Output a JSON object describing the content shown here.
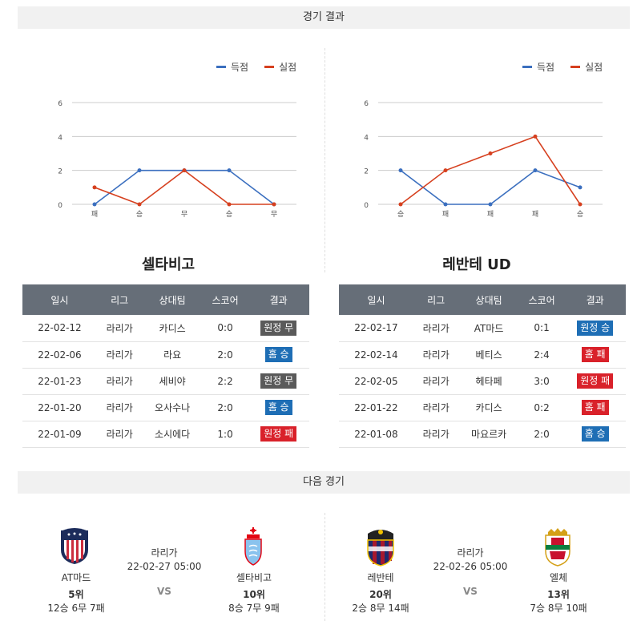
{
  "headers": {
    "results": "경기 결과",
    "next": "다음 경기"
  },
  "legend": {
    "scored": "득점",
    "conceded": "실점"
  },
  "colors": {
    "scored": "#3b6fbf",
    "conceded": "#d6401f",
    "win": "#1e6eb5",
    "loss": "#d9212a",
    "draw": "#5a5a5a"
  },
  "chart_data": [
    {
      "type": "line",
      "categories": [
        "패",
        "승",
        "무",
        "승",
        "무"
      ],
      "series": [
        {
          "name": "득점",
          "values": [
            0,
            2,
            2,
            2,
            0
          ]
        },
        {
          "name": "실점",
          "values": [
            1,
            0,
            2,
            0,
            0
          ]
        }
      ],
      "yticks": [
        "0",
        "2",
        "4",
        "6"
      ],
      "ylim": [
        0,
        6
      ],
      "grid": true,
      "legend": "top-right"
    },
    {
      "type": "line",
      "categories": [
        "승",
        "패",
        "패",
        "패",
        "승"
      ],
      "series": [
        {
          "name": "득점",
          "values": [
            2,
            0,
            0,
            2,
            1
          ]
        },
        {
          "name": "실점",
          "values": [
            0,
            2,
            3,
            4,
            0
          ]
        }
      ],
      "yticks": [
        "0",
        "2",
        "4",
        "6"
      ],
      "ylim": [
        0,
        6
      ],
      "grid": true,
      "legend": "top-right"
    }
  ],
  "teams": [
    {
      "name": "셀타비고",
      "columns": [
        "일시",
        "리그",
        "상대팀",
        "스코어",
        "결과"
      ],
      "rows": [
        {
          "date": "22-02-12",
          "league": "라리가",
          "opponent": "카디스",
          "score": "0:0",
          "result": "원정 무",
          "kind": "draw"
        },
        {
          "date": "22-02-06",
          "league": "라리가",
          "opponent": "라요",
          "score": "2:0",
          "result": "홈 승",
          "kind": "win"
        },
        {
          "date": "22-01-23",
          "league": "라리가",
          "opponent": "세비야",
          "score": "2:2",
          "result": "원정 무",
          "kind": "draw"
        },
        {
          "date": "22-01-20",
          "league": "라리가",
          "opponent": "오사수나",
          "score": "2:0",
          "result": "홈 승",
          "kind": "win"
        },
        {
          "date": "22-01-09",
          "league": "라리가",
          "opponent": "소시에다",
          "score": "1:0",
          "result": "원정 패",
          "kind": "loss"
        }
      ]
    },
    {
      "name": "레반테 UD",
      "columns": [
        "일시",
        "리그",
        "상대팀",
        "스코어",
        "결과"
      ],
      "rows": [
        {
          "date": "22-02-17",
          "league": "라리가",
          "opponent": "AT마드",
          "score": "0:1",
          "result": "원정 승",
          "kind": "win"
        },
        {
          "date": "22-02-14",
          "league": "라리가",
          "opponent": "베티스",
          "score": "2:4",
          "result": "홈 패",
          "kind": "loss"
        },
        {
          "date": "22-02-05",
          "league": "라리가",
          "opponent": "헤타페",
          "score": "3:0",
          "result": "원정 패",
          "kind": "loss"
        },
        {
          "date": "22-01-22",
          "league": "라리가",
          "opponent": "카디스",
          "score": "0:2",
          "result": "홈 패",
          "kind": "loss"
        },
        {
          "date": "22-01-08",
          "league": "라리가",
          "opponent": "마요르카",
          "score": "2:0",
          "result": "홈 승",
          "kind": "win"
        }
      ]
    }
  ],
  "next_matches": [
    {
      "league": "라리가",
      "datetime": "22-02-27 05:00",
      "vs": "VS",
      "home": {
        "name": "AT마드",
        "rank": "5위",
        "record": "12승 6무 7패"
      },
      "away": {
        "name": "셀타비고",
        "rank": "10위",
        "record": "8승 7무 9패"
      }
    },
    {
      "league": "라리가",
      "datetime": "22-02-26 05:00",
      "vs": "VS",
      "home": {
        "name": "레반테",
        "rank": "20위",
        "record": "2승 8무 14패"
      },
      "away": {
        "name": "엘체",
        "rank": "13위",
        "record": "7승 8무 10패"
      }
    }
  ]
}
